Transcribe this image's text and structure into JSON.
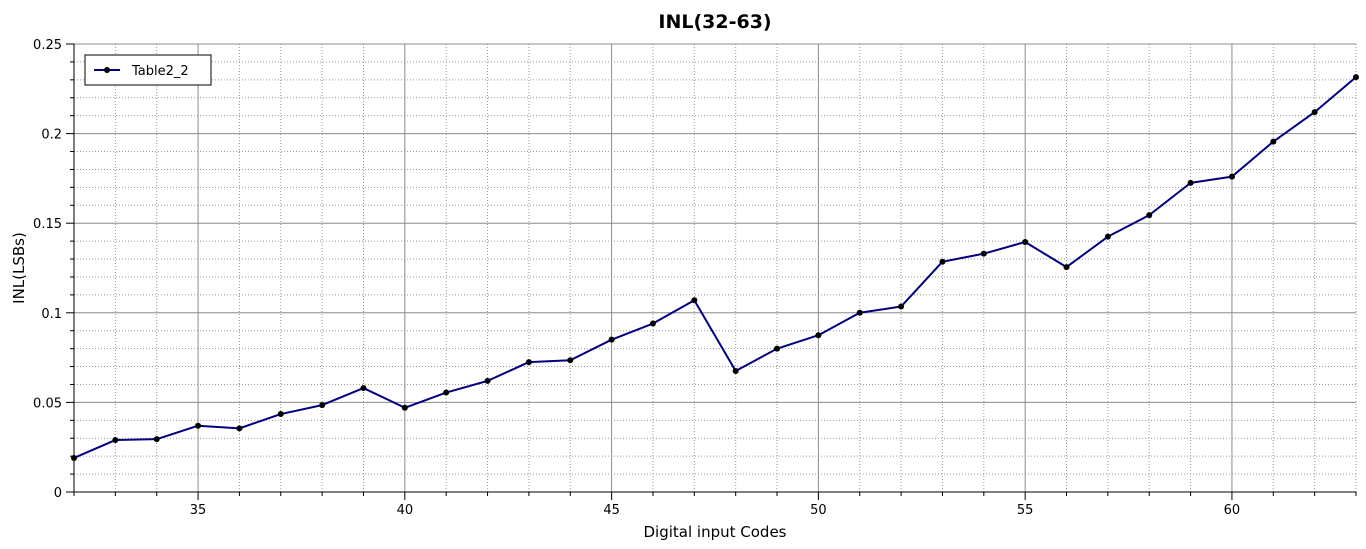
{
  "chart_data": {
    "type": "line",
    "title": "INL(32-63)",
    "xlabel": "Digital input Codes",
    "ylabel": "INL(LSBs)",
    "xlim": [
      32,
      63
    ],
    "ylim": [
      0,
      0.25
    ],
    "x_ticks": [
      35,
      40,
      45,
      50,
      55,
      60
    ],
    "y_ticks": [
      0,
      0.05,
      0.1,
      0.15,
      0.2,
      0.25
    ],
    "x_tick_labels": [
      "35",
      "40",
      "45",
      "50",
      "55",
      "60"
    ],
    "y_tick_labels": [
      "0",
      "0.05",
      "0.1",
      "0.15",
      "0.2",
      "0.25"
    ],
    "grid": true,
    "minor_grid": "dotted",
    "legend_position": "top-left",
    "series": [
      {
        "name": "Table2_2",
        "color": "#000080",
        "marker_color": "#000000",
        "x": [
          32,
          33,
          34,
          35,
          36,
          37,
          38,
          39,
          40,
          41,
          42,
          43,
          44,
          45,
          46,
          47,
          48,
          49,
          50,
          51,
          52,
          53,
          54,
          55,
          56,
          57,
          58,
          59,
          60,
          61,
          62,
          63
        ],
        "values": [
          0.019,
          0.029,
          0.0295,
          0.037,
          0.0355,
          0.0435,
          0.0485,
          0.058,
          0.047,
          0.0555,
          0.062,
          0.0725,
          0.0735,
          0.085,
          0.094,
          0.107,
          0.0675,
          0.08,
          0.0875,
          0.1,
          0.1035,
          0.1285,
          0.133,
          0.1395,
          0.1255,
          0.1425,
          0.1545,
          0.1725,
          0.176,
          0.1955,
          0.212,
          0.2315
        ]
      }
    ]
  }
}
